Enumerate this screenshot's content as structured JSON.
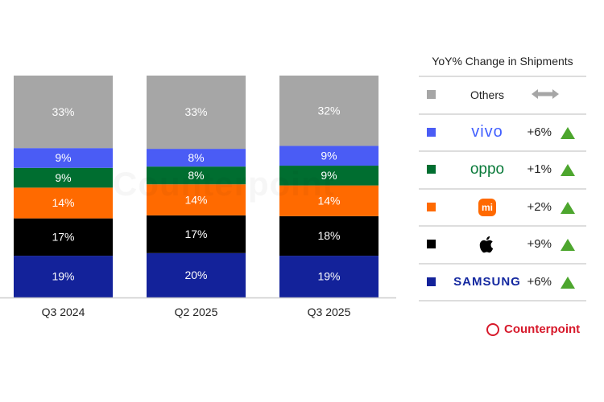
{
  "chart_data": {
    "type": "bar",
    "stacked": true,
    "categories": [
      "Q3 2024",
      "Q2 2025",
      "Q3 2025"
    ],
    "series": [
      {
        "name": "Samsung",
        "color": "#13229a",
        "values": [
          19,
          20,
          19
        ]
      },
      {
        "name": "Apple",
        "color": "#000000",
        "values": [
          17,
          17,
          18
        ]
      },
      {
        "name": "Xiaomi",
        "color": "#ff6a00",
        "values": [
          14,
          14,
          14
        ]
      },
      {
        "name": "OPPO",
        "color": "#006e30",
        "values": [
          9,
          8,
          9
        ]
      },
      {
        "name": "vivo",
        "color": "#4a5cf5",
        "values": [
          9,
          8,
          9
        ]
      },
      {
        "name": "Others",
        "color": "#a6a6a6",
        "values": [
          33,
          33,
          32
        ]
      }
    ],
    "data_label_format": "{v}%",
    "grid": false,
    "legend_placement": "right"
  },
  "legend": {
    "title": "YoY% Change in Shipments",
    "rows": [
      {
        "brand": "Others",
        "color": "#a6a6a6",
        "change": "",
        "trend": "flat"
      },
      {
        "brand": "vivo",
        "color": "#4a5cf5",
        "change": "+6%",
        "trend": "up"
      },
      {
        "brand": "oppo",
        "color": "#006e30",
        "change": "+1%",
        "trend": "up"
      },
      {
        "brand": "mi",
        "color": "#ff6a00",
        "change": "+2%",
        "trend": "up"
      },
      {
        "brand": "apple",
        "color": "#000000",
        "change": "+9%",
        "trend": "up"
      },
      {
        "brand": "SAMSUNG",
        "color": "#13229a",
        "change": "+6%",
        "trend": "up"
      }
    ],
    "trend_up_color": "#4da62e",
    "trend_flat_color": "#a6a6a6"
  },
  "branding": {
    "logo_text": "Counterpoint",
    "watermark_text": "Counterpoint",
    "color": "#d7192b"
  }
}
